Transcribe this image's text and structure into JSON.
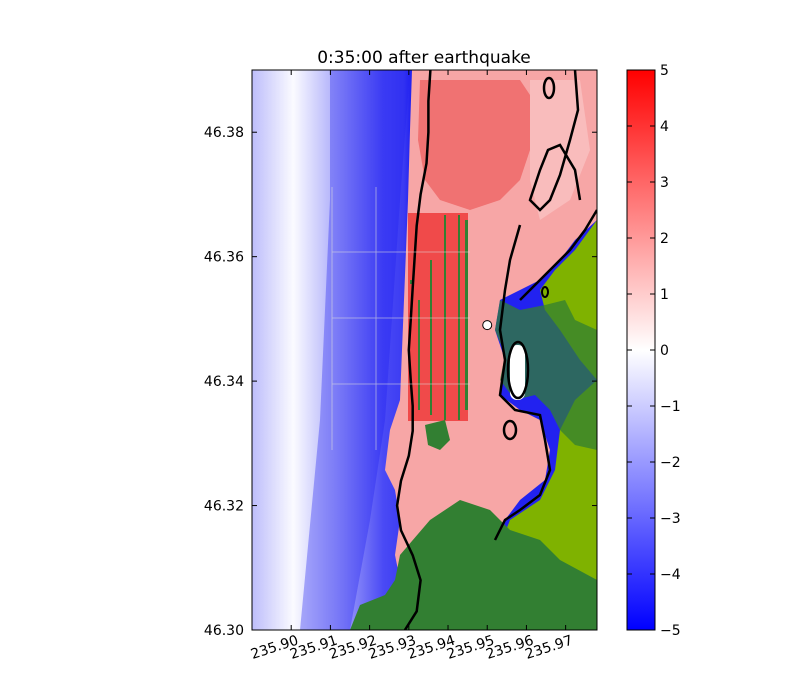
{
  "chart_data": {
    "type": "heatmap",
    "title": "0:35:00 after earthquake",
    "x_tick_labels": [
      "235.90",
      "235.91",
      "235.92",
      "235.93",
      "235.94",
      "235.95",
      "235.96",
      "235.97"
    ],
    "x_ticks": [
      235.9,
      235.91,
      235.92,
      235.93,
      235.94,
      235.95,
      235.96,
      235.97
    ],
    "xlim": [
      235.89,
      235.978
    ],
    "y_tick_labels": [
      "46.30",
      "46.32",
      "46.34",
      "46.36",
      "46.38"
    ],
    "y_ticks": [
      46.3,
      46.32,
      46.34,
      46.36,
      46.38
    ],
    "ylim": [
      46.3,
      46.39
    ],
    "colorbar": {
      "tick_labels": [
        "5",
        "4",
        "3",
        "2",
        "1",
        "0",
        "−1",
        "−2",
        "−3",
        "−4",
        "−5"
      ],
      "ticks": [
        5,
        4,
        3,
        2,
        1,
        0,
        -1,
        -2,
        -3,
        -4,
        -5
      ],
      "range": [
        -5,
        5
      ],
      "low_color": "#0000ff",
      "mid_color": "#ffffff",
      "high_color": "#ff0000"
    },
    "land_colors": [
      "#327f32",
      "#7fb200"
    ],
    "shoreline_contour": [
      [
        235.929,
        46.3
      ],
      [
        235.932,
        46.303
      ],
      [
        235.933,
        46.308
      ],
      [
        235.931,
        46.312
      ],
      [
        235.928,
        46.316
      ],
      [
        235.927,
        46.32
      ],
      [
        235.928,
        46.324
      ],
      [
        235.93,
        46.328
      ],
      [
        235.931,
        46.332
      ],
      [
        235.931,
        46.336
      ],
      [
        235.9305,
        46.34
      ],
      [
        235.93,
        46.345
      ],
      [
        235.9305,
        46.35
      ],
      [
        235.931,
        46.355
      ],
      [
        235.9315,
        46.36
      ],
      [
        235.932,
        46.365
      ],
      [
        235.933,
        46.37
      ],
      [
        235.9345,
        46.375
      ],
      [
        235.935,
        46.38
      ],
      [
        235.935,
        46.385
      ],
      [
        235.9355,
        46.39
      ]
    ],
    "gauge_point": [
      235.95,
      46.349
    ]
  }
}
